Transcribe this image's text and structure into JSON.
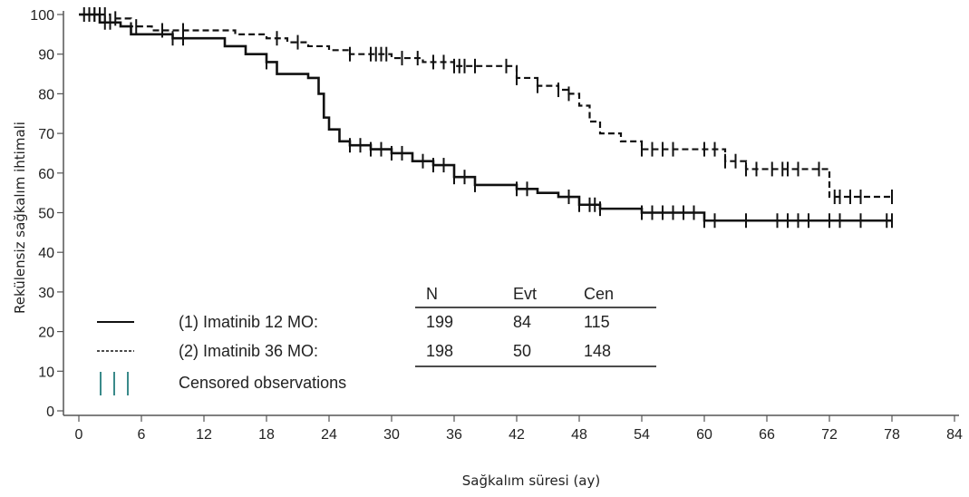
{
  "chart_data": {
    "type": "line",
    "xlabel": "Sağkalım süresi (ay)",
    "ylabel": "Rekülensiz sağkalım ihtimali",
    "xlim": [
      0,
      84
    ],
    "ylim": [
      0,
      100
    ],
    "x_ticks": [
      "0",
      "6",
      "12",
      "18",
      "24",
      "30",
      "36",
      "42",
      "48",
      "54",
      "60",
      "66",
      "72",
      "78",
      "84"
    ],
    "y_ticks": [
      "0",
      "10",
      "20",
      "30",
      "40",
      "50",
      "60",
      "70",
      "80",
      "90",
      "100"
    ],
    "grid": false,
    "series": [
      {
        "name": "(1) Imatinib 12 MO:",
        "style": "solid",
        "color": "#111111",
        "x": [
          0,
          2,
          4,
          5,
          7,
          9,
          12,
          14,
          16,
          18,
          19,
          20,
          21,
          22,
          23,
          23.5,
          24,
          25,
          26,
          28,
          30,
          32,
          34,
          36,
          38,
          40,
          42,
          44,
          46,
          48,
          50,
          52,
          54,
          56,
          58,
          60,
          66,
          72,
          78
        ],
        "y": [
          100,
          98,
          97,
          95,
          95,
          94,
          94,
          92,
          90,
          88,
          85,
          85,
          85,
          84,
          80,
          74,
          71,
          68,
          67,
          66,
          65,
          63,
          62,
          59,
          57,
          57,
          56,
          55,
          54,
          52,
          51,
          51,
          50,
          50,
          50,
          48,
          48,
          48,
          48
        ],
        "censor_x": [
          1,
          1.5,
          2.5,
          3,
          9,
          10,
          18,
          26,
          27,
          28,
          29,
          30,
          31,
          33,
          34,
          35,
          36,
          37,
          38,
          42,
          43,
          47,
          48,
          49,
          49.5,
          50,
          54,
          55,
          56,
          57,
          58,
          59,
          60,
          61,
          64,
          67,
          68,
          69,
          70,
          72,
          73,
          75,
          77.5,
          78
        ]
      },
      {
        "name": "(2) Imatinib 36 MO:",
        "style": "dashed",
        "color": "#111111",
        "x": [
          0,
          3,
          5,
          7,
          9,
          12,
          15,
          18,
          20,
          22,
          24,
          26,
          28,
          30,
          33,
          36,
          38,
          40,
          42,
          44,
          46,
          47,
          48,
          49,
          50,
          52,
          54,
          56,
          58,
          60,
          62,
          64,
          66,
          68,
          70,
          71.5,
          72,
          78
        ],
        "y": [
          100,
          99,
          97,
          96,
          96,
          96,
          95,
          94,
          93,
          92,
          91,
          90,
          90,
          89,
          88,
          87,
          87,
          87,
          84,
          82,
          81,
          80,
          77,
          73,
          70,
          68,
          66,
          66,
          66,
          66,
          63,
          61,
          61,
          61,
          61,
          61,
          54,
          54
        ],
        "censor_x": [
          0.5,
          1,
          1.5,
          2,
          2.5,
          3.5,
          5.5,
          8,
          10,
          19,
          21,
          26,
          28,
          28.5,
          29,
          29.5,
          31,
          32.5,
          34,
          35,
          36,
          36.5,
          37,
          38,
          41,
          42,
          44,
          46,
          47,
          54,
          55,
          56,
          57,
          60,
          61,
          62,
          63,
          64,
          65,
          66.5,
          67.5,
          68,
          69,
          71,
          72.5,
          73,
          74,
          75,
          78
        ]
      }
    ],
    "legend_placement": "bottom-left",
    "legend_entries": [
      {
        "label": "(1) Imatinib 12 MO:",
        "symbol": "solid-line"
      },
      {
        "label": "(2) Imatinib 36 MO:",
        "symbol": "dashed-line"
      },
      {
        "label": "Censored observations",
        "symbol": "censor-ticks"
      }
    ],
    "stats_table": {
      "headers": [
        "N",
        "Evt",
        "Cen"
      ],
      "rows": [
        [
          "199",
          "84",
          "115"
        ],
        [
          "198",
          "50",
          "148"
        ]
      ]
    },
    "colors": {
      "curve": "#111111",
      "axis": "#555555",
      "censor_legend": "#3a8a8a"
    }
  }
}
